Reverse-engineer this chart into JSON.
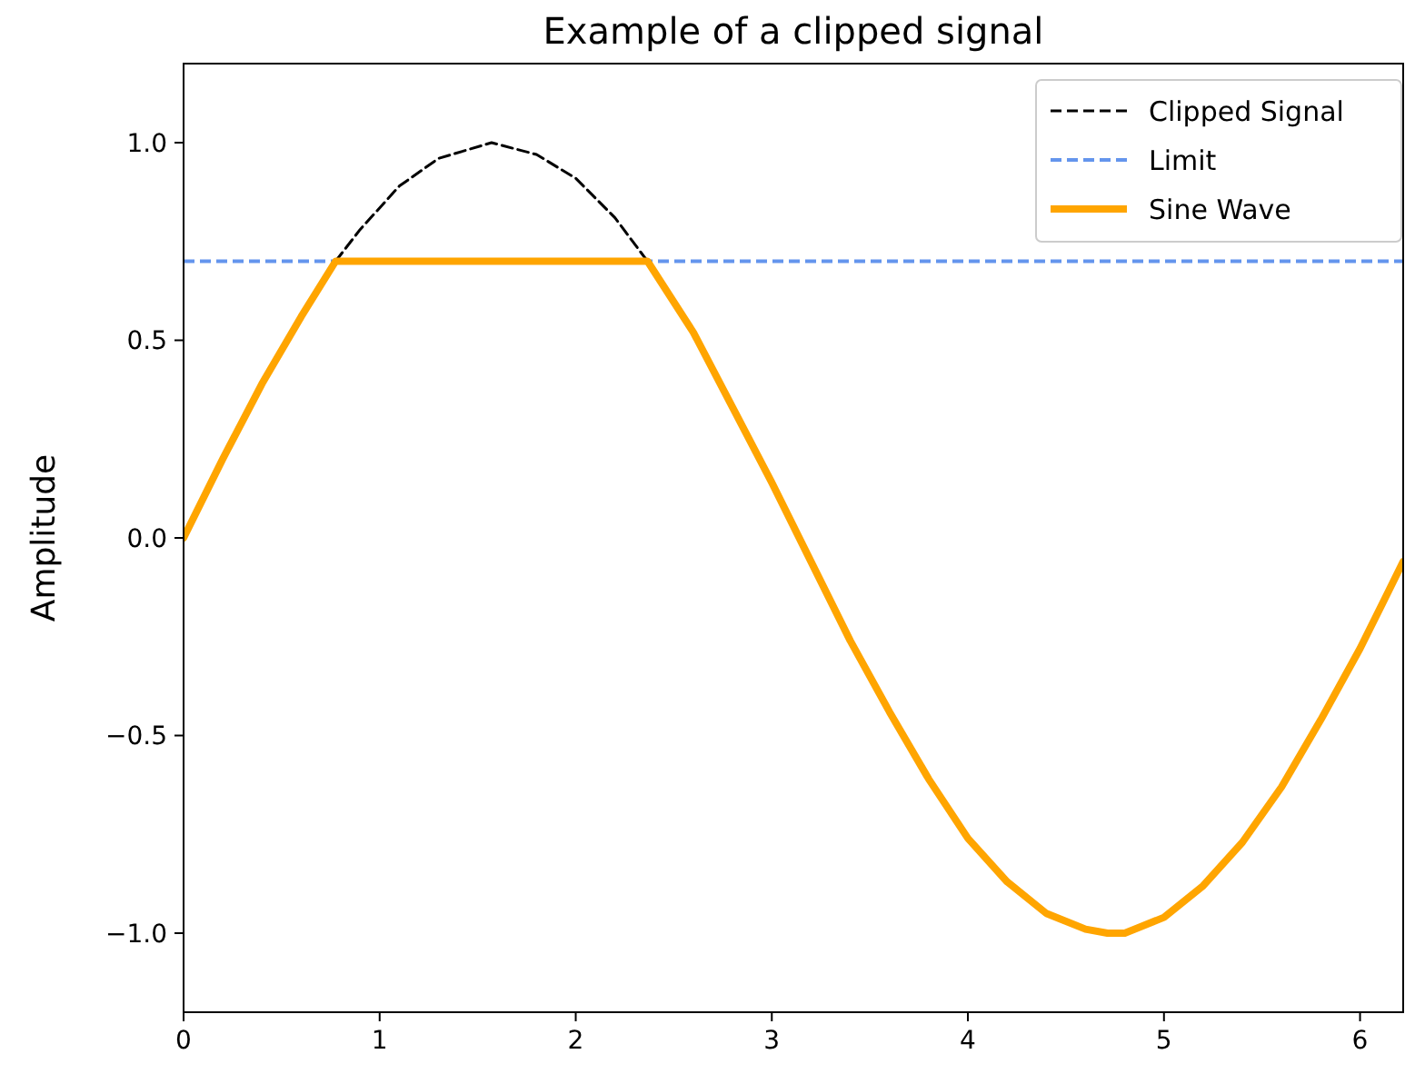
{
  "chart_data": {
    "type": "line",
    "title": "Example of a clipped signal",
    "ylabel": "Amplitude",
    "xlim": [
      0,
      6.22
    ],
    "xticks": [
      0,
      1,
      2,
      3,
      4,
      5,
      6
    ],
    "ylim": [
      -1.2,
      1.2
    ],
    "yticks": [
      {
        "value": -1,
        "label": "−1.0"
      },
      {
        "value": -0.5,
        "label": "−0.5"
      },
      {
        "value": 0,
        "label": "0.0"
      },
      {
        "value": 0.5,
        "label": "0.5"
      },
      {
        "value": 1,
        "label": "1.0"
      }
    ],
    "legend": "top right",
    "ref_lines": [
      {
        "axis": "y",
        "value": 0.7,
        "label": "Limit",
        "color": "#6495ed",
        "line_style": "dashed"
      }
    ],
    "series": [
      {
        "name": "Clipped Signal",
        "color": "#000000",
        "line_style": "dashed",
        "x": [
          0.7754,
          0.9,
          1.1,
          1.3,
          1.5708,
          1.8,
          2.0,
          2.2,
          2.3662
        ],
        "values": [
          0.7,
          0.78,
          0.89,
          0.96,
          1.0,
          0.97,
          0.91,
          0.81,
          0.7
        ]
      },
      {
        "name": "Sine Wave",
        "color": "#ffa500",
        "line_style": "solid",
        "x": [
          0,
          0.2,
          0.4,
          0.6,
          0.7754,
          2.3662,
          2.6,
          2.8,
          3.0,
          3.2,
          3.4,
          3.6,
          3.8,
          4.0,
          4.2,
          4.4,
          4.6,
          4.712,
          4.8,
          5.0,
          5.2,
          5.4,
          5.6,
          5.8,
          6.0,
          6.22
        ],
        "values": [
          0,
          0.2,
          0.39,
          0.56,
          0.7,
          0.7,
          0.52,
          0.33,
          0.14,
          -0.06,
          -0.26,
          -0.44,
          -0.61,
          -0.76,
          -0.87,
          -0.95,
          -0.99,
          -1.0,
          -1.0,
          -0.96,
          -0.88,
          -0.77,
          -0.63,
          -0.46,
          -0.28,
          -0.06
        ]
      }
    ]
  }
}
